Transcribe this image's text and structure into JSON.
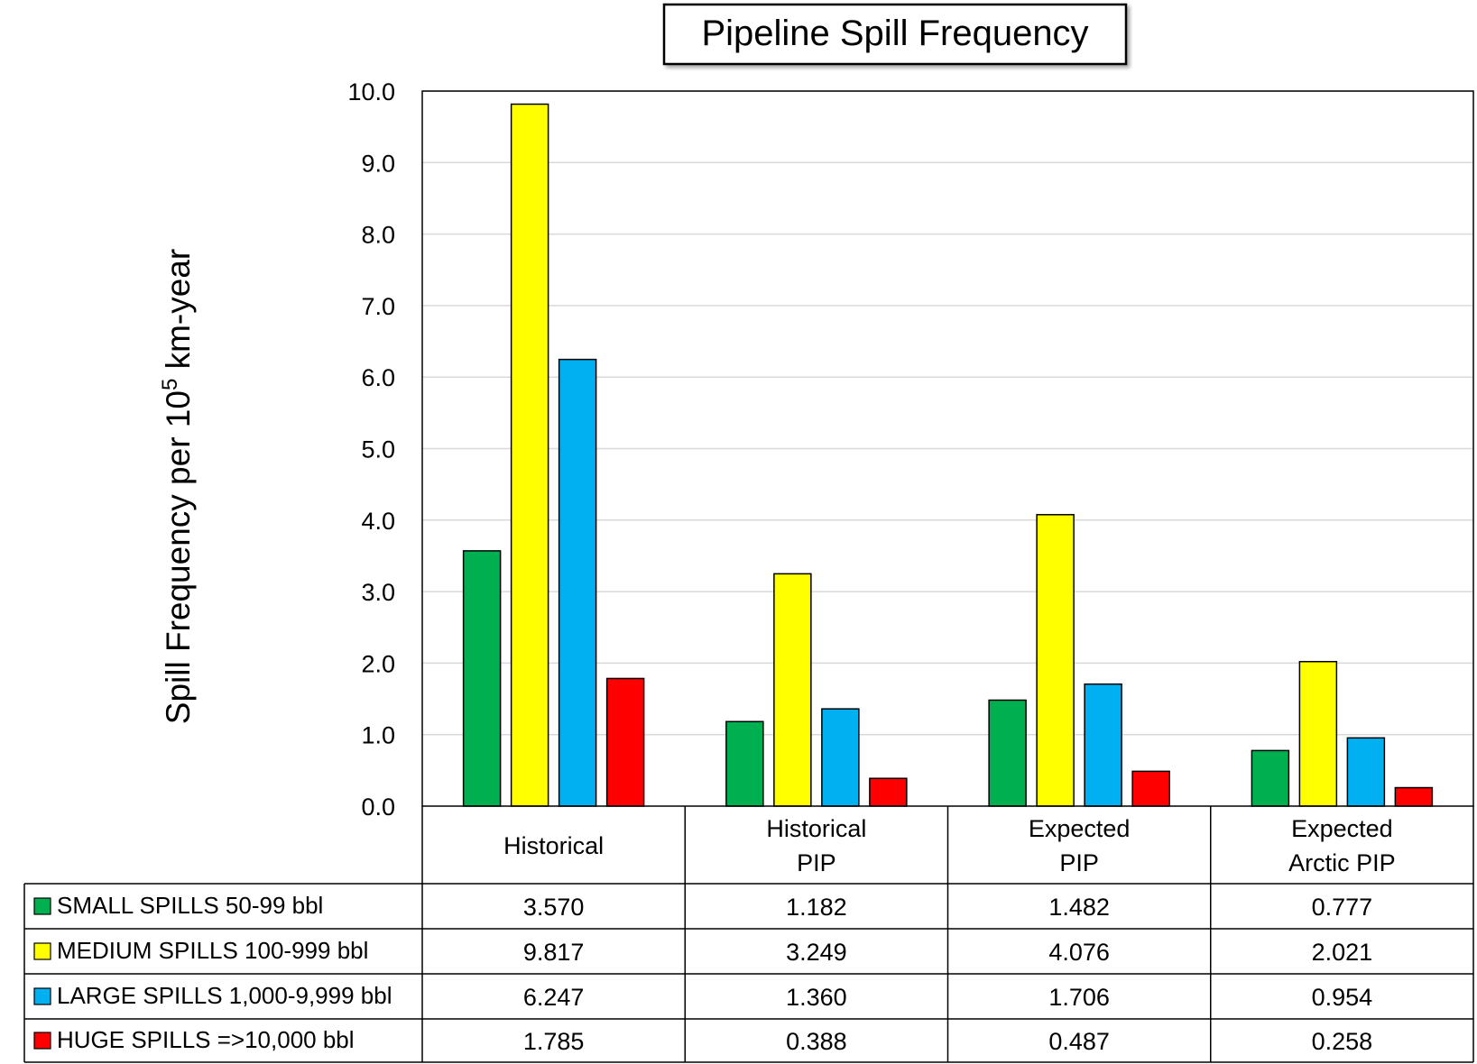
{
  "chart_data": {
    "type": "bar",
    "title": "Pipeline Spill Frequency",
    "ylabel": "Spill Frequency per 10",
    "ylabel_superscript": "5",
    "ylabel_suffix": " km-year",
    "ylim": [
      0,
      10
    ],
    "yticks": [
      "0.0",
      "1.0",
      "2.0",
      "3.0",
      "4.0",
      "5.0",
      "6.0",
      "7.0",
      "8.0",
      "9.0",
      "10.0"
    ],
    "grid": true,
    "legend_placement": "data table below chart",
    "categories": [
      [
        "Historical"
      ],
      [
        "Historical",
        "PIP"
      ],
      [
        "Expected",
        "PIP"
      ],
      [
        "Expected",
        "Arctic PIP"
      ]
    ],
    "series": [
      {
        "name": "SMALL SPILLS 50-99 bbl",
        "color": "#00b050",
        "values": [
          3.57,
          1.182,
          1.482,
          0.777
        ],
        "labels": [
          "3.570",
          "1.182",
          "1.482",
          "0.777"
        ]
      },
      {
        "name": "MEDIUM SPILLS 100-999 bbl",
        "color": "#ffff00",
        "values": [
          9.817,
          3.249,
          4.076,
          2.021
        ],
        "labels": [
          "9.817",
          "3.249",
          "4.076",
          "2.021"
        ]
      },
      {
        "name": "LARGE SPILLS 1,000-9,999 bbl",
        "color": "#00b0f0",
        "values": [
          6.247,
          1.36,
          1.706,
          0.954
        ],
        "labels": [
          "6.247",
          "1.360",
          "1.706",
          "0.954"
        ]
      },
      {
        "name": "HUGE SPILLS =>10,000 bbl",
        "color": "#ff0000",
        "values": [
          1.785,
          0.388,
          0.487,
          0.258
        ],
        "labels": [
          "1.785",
          "0.388",
          "0.487",
          "0.258"
        ]
      }
    ]
  }
}
